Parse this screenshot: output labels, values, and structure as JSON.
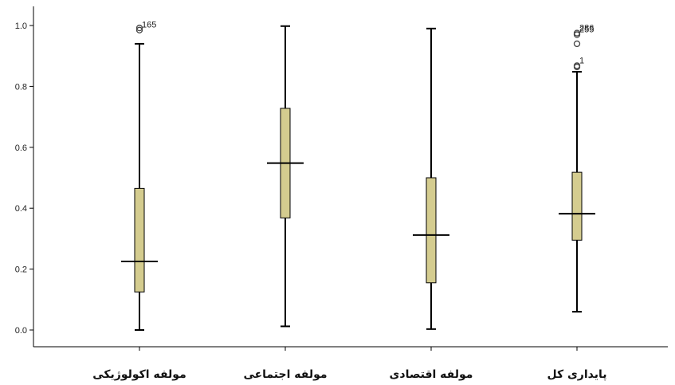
{
  "chart_data": {
    "type": "boxplot",
    "ylim": [
      0,
      1.0
    ],
    "yticks": [
      0.0,
      0.2,
      0.4,
      0.6,
      0.8,
      1.0
    ],
    "ytick_labels": [
      "0.0",
      "0.2",
      "0.4",
      "0.6",
      "0.8",
      "1.0"
    ],
    "grid": false,
    "box_color": "#d4cc8f",
    "line_color": "#000000",
    "categories": [
      "مولفه اکولوژیکی",
      "مولفه اجتماعی",
      "مولفه اقتصادی",
      "پایداری کل"
    ],
    "boxes": [
      {
        "whisker_low": 0.0,
        "q1": 0.125,
        "median": 0.225,
        "q3": 0.465,
        "whisker_high": 0.94,
        "outliers": [
          {
            "value": 0.985,
            "label": "165"
          },
          {
            "value": 0.992,
            "label": ""
          }
        ]
      },
      {
        "whisker_low": 0.012,
        "q1": 0.368,
        "median": 0.548,
        "q3": 0.728,
        "whisker_high": 0.998,
        "outliers": []
      },
      {
        "whisker_low": 0.003,
        "q1": 0.155,
        "median": 0.312,
        "q3": 0.5,
        "whisker_high": 0.99,
        "outliers": []
      },
      {
        "whisker_low": 0.06,
        "q1": 0.295,
        "median": 0.382,
        "q3": 0.518,
        "whisker_high": 0.848,
        "outliers": [
          {
            "value": 0.975,
            "label": "286"
          },
          {
            "value": 0.97,
            "label": "255"
          },
          {
            "value": 0.94,
            "label": ""
          },
          {
            "value": 0.868,
            "label": "1"
          },
          {
            "value": 0.864,
            "label": ""
          }
        ]
      }
    ]
  }
}
